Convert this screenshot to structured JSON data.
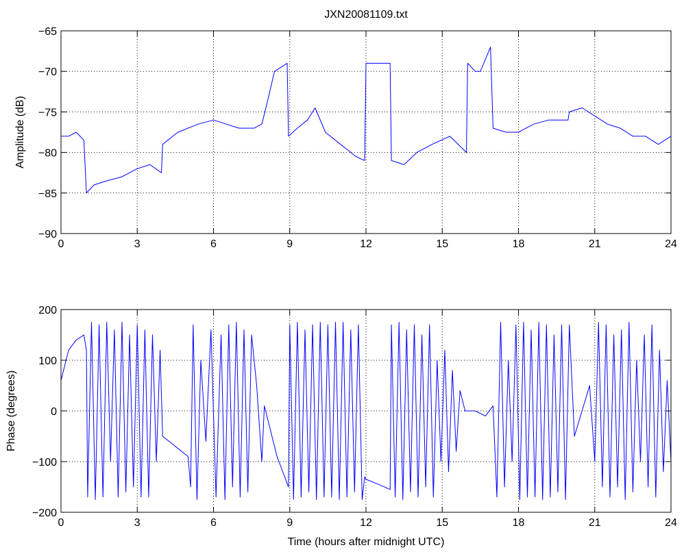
{
  "chart_data": [
    {
      "type": "line",
      "title": "JXN20081109.txt",
      "xlabel": "",
      "ylabel": "Amplitude (dB)",
      "xlim": [
        0,
        24
      ],
      "ylim": [
        -90,
        -65
      ],
      "xticks": [
        0,
        3,
        6,
        9,
        12,
        15,
        18,
        21,
        24
      ],
      "yticks": [
        -90,
        -85,
        -80,
        -75,
        -70,
        -65
      ],
      "xtick_labels": [
        "0",
        "3",
        "6",
        "9",
        "12",
        "15",
        "18",
        "21",
        "24"
      ],
      "ytick_labels": [
        "−90",
        "−85",
        "−80",
        "−75",
        "−70",
        "−65"
      ],
      "grid": true,
      "line_color": "#0000ff",
      "series": [
        {
          "x": [
            0,
            0.3,
            0.6,
            0.9,
            1.0,
            1.3,
            1.8,
            2.4,
            3.0,
            3.5,
            3.95,
            4.0,
            4.6,
            5.4,
            6.0,
            6.5,
            7.0,
            7.6,
            7.9,
            8.1,
            8.4,
            8.9,
            8.95,
            9.3,
            9.7,
            10.0,
            10.4,
            11.0,
            11.6,
            11.95,
            12.0,
            12.5,
            12.95,
            13.0,
            13.5,
            14.0,
            14.6,
            15.3,
            15.95,
            16.0,
            16.3,
            16.5,
            16.9,
            17.0,
            17.5,
            18.0,
            18.6,
            19.2,
            19.95,
            20.0,
            20.5,
            21.0,
            21.5,
            22.0,
            22.5,
            23.0,
            23.5,
            24.0
          ],
          "y": [
            -78,
            -78,
            -77.5,
            -78.5,
            -85,
            -84,
            -83.5,
            -83,
            -82,
            -81.5,
            -82.5,
            -79,
            -77.5,
            -76.5,
            -76,
            -76.5,
            -77,
            -77,
            -76.5,
            -74,
            -70,
            -69,
            -78,
            -77,
            -76,
            -74.5,
            -77.5,
            -79,
            -80.5,
            -81,
            -69,
            -69,
            -69,
            -81,
            -81.5,
            -80,
            -79,
            -78,
            -80,
            -69,
            -70,
            -70,
            -67,
            -77,
            -77.5,
            -77.5,
            -76.5,
            -76,
            -76,
            -75,
            -74.5,
            -75.5,
            -76.5,
            -77,
            -78,
            -78,
            -79,
            -78
          ]
        }
      ]
    },
    {
      "type": "line",
      "title": "",
      "xlabel": "Time (hours after midnight UTC)",
      "ylabel": "Phase (degrees)",
      "xlim": [
        0,
        24
      ],
      "ylim": [
        -200,
        200
      ],
      "xticks": [
        0,
        3,
        6,
        9,
        12,
        15,
        18,
        21,
        24
      ],
      "yticks": [
        -200,
        -100,
        0,
        100,
        200
      ],
      "xtick_labels": [
        "0",
        "3",
        "6",
        "9",
        "12",
        "15",
        "18",
        "21",
        "24"
      ],
      "ytick_labels": [
        "−200",
        "−100",
        "0",
        "100",
        "200"
      ],
      "grid": true,
      "line_color": "#0000ff",
      "series": [
        {
          "x": [
            0,
            0.1,
            0.3,
            0.6,
            0.9,
            1.0,
            1.05,
            1.2,
            1.35,
            1.5,
            1.65,
            1.8,
            1.95,
            2.1,
            2.25,
            2.4,
            2.55,
            2.7,
            2.85,
            3.0,
            3.15,
            3.3,
            3.45,
            3.6,
            3.75,
            3.9,
            4.0,
            4.5,
            5.0,
            5.1,
            5.2,
            5.35,
            5.5,
            5.7,
            5.9,
            6.1,
            6.3,
            6.45,
            6.6,
            6.75,
            6.9,
            7.05,
            7.2,
            7.35,
            7.5,
            7.7,
            7.9,
            8.0,
            8.5,
            8.95,
            9.0,
            9.15,
            9.3,
            9.45,
            9.6,
            9.75,
            9.9,
            10.05,
            10.2,
            10.35,
            10.5,
            10.65,
            10.8,
            10.95,
            11.1,
            11.25,
            11.4,
            11.55,
            11.7,
            11.85,
            11.95,
            12.0,
            12.5,
            12.95,
            13.0,
            13.15,
            13.3,
            13.45,
            13.6,
            13.75,
            13.9,
            14.05,
            14.2,
            14.35,
            14.5,
            14.65,
            14.8,
            14.95,
            15.1,
            15.25,
            15.4,
            15.55,
            15.7,
            15.9,
            16.3,
            16.7,
            17.0,
            17.15,
            17.3,
            17.45,
            17.6,
            17.75,
            17.9,
            18.05,
            18.2,
            18.35,
            18.5,
            18.65,
            18.8,
            18.95,
            19.1,
            19.25,
            19.4,
            19.55,
            19.7,
            19.85,
            20.0,
            20.2,
            20.5,
            20.8,
            21.0,
            21.15,
            21.3,
            21.45,
            21.6,
            21.75,
            21.9,
            22.05,
            22.2,
            22.35,
            22.5,
            22.65,
            22.8,
            22.95,
            23.1,
            23.25,
            23.4,
            23.55,
            23.7,
            23.85,
            24.0
          ],
          "y": [
            60,
            80,
            120,
            140,
            150,
            120,
            -170,
            175,
            -175,
            170,
            -170,
            175,
            -100,
            160,
            -170,
            175,
            -160,
            150,
            -150,
            170,
            -170,
            160,
            -170,
            150,
            -100,
            120,
            -50,
            -70,
            -90,
            -150,
            170,
            -175,
            100,
            -60,
            160,
            -170,
            150,
            -175,
            170,
            -150,
            175,
            -170,
            160,
            -160,
            150,
            50,
            -100,
            10,
            -90,
            -150,
            170,
            -175,
            175,
            -170,
            160,
            -160,
            170,
            -175,
            175,
            -170,
            170,
            -170,
            175,
            -175,
            175,
            -170,
            160,
            -160,
            170,
            -175,
            -130,
            -135,
            -145,
            -155,
            170,
            -170,
            175,
            -175,
            160,
            -160,
            170,
            -170,
            150,
            -150,
            170,
            -170,
            100,
            -100,
            120,
            -120,
            80,
            -80,
            40,
            0,
            0,
            -10,
            10,
            -170,
            175,
            -150,
            100,
            -100,
            170,
            -175,
            175,
            -170,
            160,
            -170,
            175,
            -175,
            170,
            -170,
            150,
            -160,
            170,
            -175,
            170,
            -50,
            0,
            50,
            -100,
            175,
            -150,
            170,
            -170,
            150,
            -150,
            160,
            -175,
            175,
            -160,
            100,
            -100,
            150,
            -150,
            170,
            -170,
            120,
            -120,
            60,
            -100
          ]
        }
      ]
    }
  ]
}
